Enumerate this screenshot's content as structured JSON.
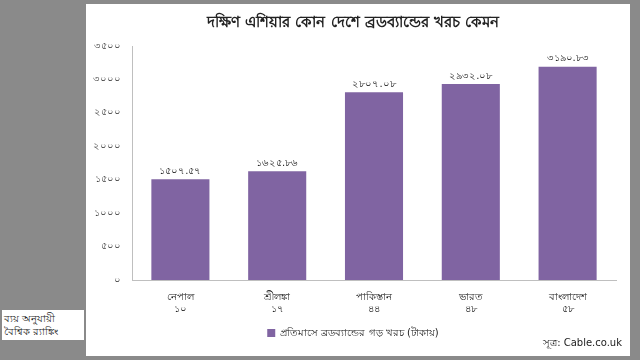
{
  "chart_data": {
    "type": "bar",
    "title": "দক্ষিণ এশিয়ার কোন দেশে ব্রডব্যান্ডের খরচ কেমন",
    "categories": [
      "নেপাল",
      "শ্রীলঙ্কা",
      "পাকিস্তান",
      "ভারত",
      "বাংলাদেশ"
    ],
    "series": [
      {
        "name": "প্রতিমাসে ব্রডব্যান্ডের গড় খরচ (টাকায়)",
        "color": "#8064a2",
        "values": [
          1507.57,
          1625.86,
          2807.08,
          2932.08,
          3190.83
        ],
        "value_labels": [
          "১৫০৭.৫৭",
          "১৬২৫.৮৬",
          "২৮০৭.০৮",
          "২৯৩২.০৮",
          "৩১৯০.৮৩"
        ]
      }
    ],
    "ylim": [
      0,
      3500
    ],
    "yticks": [
      {
        "value": 0,
        "label": "০"
      },
      {
        "value": 500,
        "label": "৫০০"
      },
      {
        "value": 1000,
        "label": "১০০০"
      },
      {
        "value": 1500,
        "label": "১৫০০"
      },
      {
        "value": 2000,
        "label": "২০০০"
      },
      {
        "value": 2500,
        "label": "২৫০০"
      },
      {
        "value": 3000,
        "label": "৩০০০"
      },
      {
        "value": 3500,
        "label": "৩৫০০"
      }
    ],
    "grid": false,
    "data_labels": true,
    "legend": "bottom",
    "ranking_title": "ব্যয় অনুযায়ী বৈশ্বিক র‍্যাঙ্কিং",
    "ranking": [
      10,
      17,
      44,
      48,
      58
    ],
    "ranking_labels": [
      "১০",
      "১৭",
      "৪৪",
      "৪৮",
      "৫৮"
    ],
    "source": "সূত্র: Cable.co.uk"
  }
}
